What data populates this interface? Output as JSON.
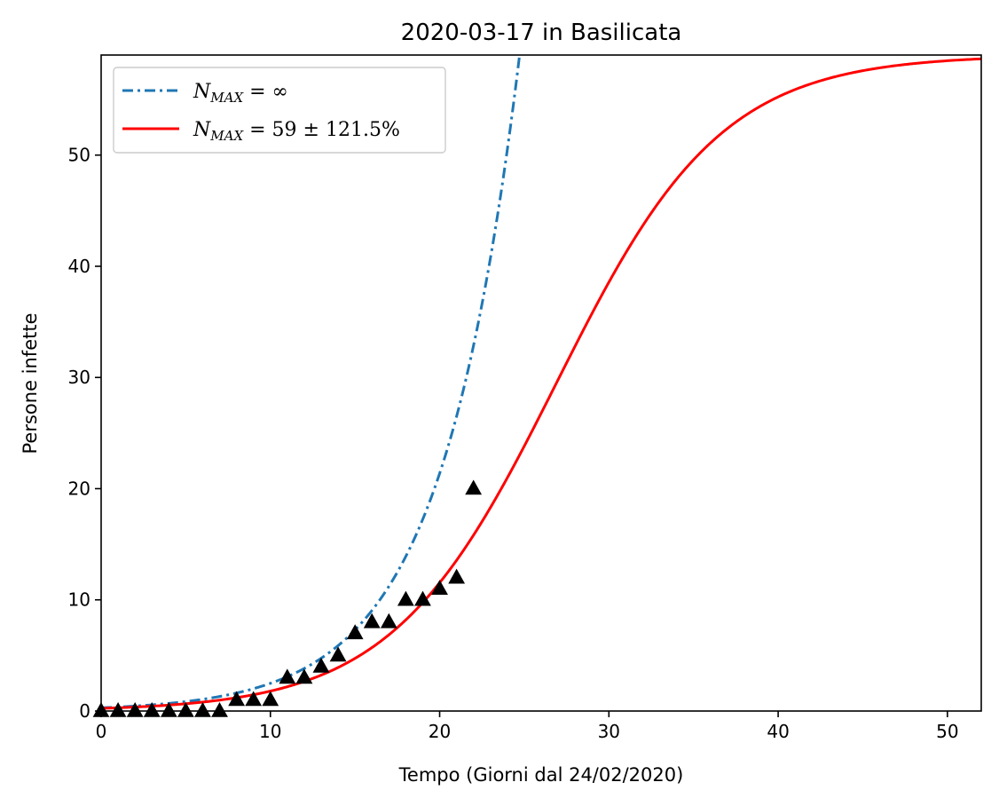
{
  "chart_data": {
    "type": "line",
    "title": "2020-03-17 in Basilicata",
    "xlabel": "Tempo (Giorni dal 24/02/2020)",
    "ylabel": "Persone infette",
    "xlim": [
      0,
      52
    ],
    "ylim": [
      0,
      59
    ],
    "x_ticks": [
      0,
      10,
      20,
      30,
      40,
      50
    ],
    "y_ticks": [
      0,
      10,
      20,
      30,
      40,
      50
    ],
    "grid": false,
    "legend_position": "top-left",
    "series": [
      {
        "name": "N_MAX = ∞",
        "legend_main": "N",
        "legend_sub": "MAX",
        "legend_rest": " = ∞",
        "style": "dash-dot",
        "color": "#1f77b4",
        "model": "exponential",
        "params": {
          "a": 0.29,
          "b": 0.215
        }
      },
      {
        "name": "N_MAX = 59 ± 121.5%",
        "legend_main": "N",
        "legend_sub": "MAX",
        "legend_rest": " = 59 ± 121.5%",
        "style": "solid",
        "color": "#ff0000",
        "model": "logistic",
        "params": {
          "K": 59,
          "r": 0.205,
          "t0": 26.9
        }
      }
    ],
    "observed": {
      "marker": "triangle",
      "color": "#000000",
      "x": [
        0,
        1,
        2,
        3,
        4,
        5,
        6,
        7,
        8,
        9,
        10,
        11,
        12,
        13,
        14,
        15,
        16,
        17,
        18,
        19,
        20,
        21,
        22
      ],
      "y": [
        0,
        0,
        0,
        0,
        0,
        0,
        0,
        0,
        1,
        1,
        1,
        3,
        3,
        4,
        5,
        7,
        8,
        8,
        10,
        10,
        11,
        12,
        20
      ]
    }
  }
}
